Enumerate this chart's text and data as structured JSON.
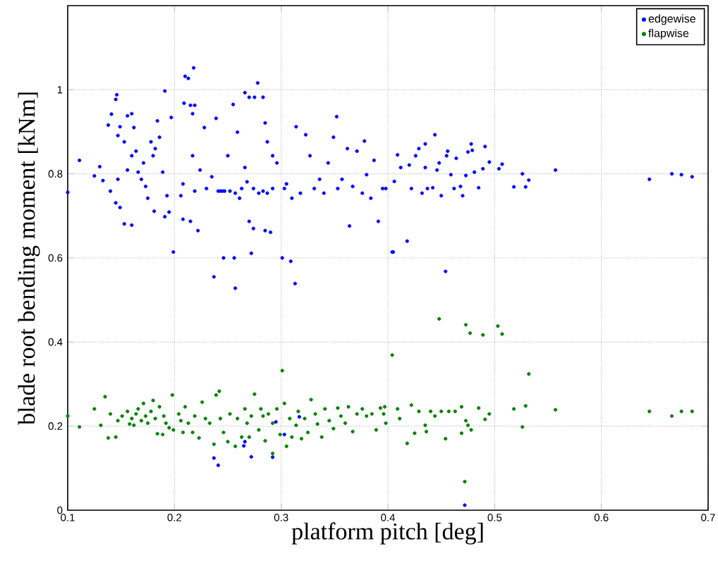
{
  "chart_data": {
    "type": "scatter",
    "xlabel": "platform pitch [deg]",
    "ylabel": "blade root bending moment [kNm]",
    "xlim": [
      0.1,
      0.7
    ],
    "ylim": [
      0,
      1.2
    ],
    "xticks": [
      0.1,
      0.2,
      0.3,
      0.4,
      0.5,
      0.6,
      0.7
    ],
    "yticks": [
      0,
      0.2,
      0.4,
      0.6,
      0.8,
      1
    ],
    "grid": true,
    "legend": "top right",
    "marker": "circle",
    "series": [
      {
        "name": "edgewise",
        "color": "#0000ff",
        "x": [
          0.1,
          0.111,
          0.125,
          0.13,
          0.133,
          0.138,
          0.141,
          0.145,
          0.146,
          0.147,
          0.149,
          0.153,
          0.156,
          0.16,
          0.162,
          0.145,
          0.149,
          0.153,
          0.16,
          0.14,
          0.147,
          0.156,
          0.16,
          0.164,
          0.166,
          0.169,
          0.171,
          0.173,
          0.175,
          0.178,
          0.18,
          0.182,
          0.184,
          0.186,
          0.189,
          0.191,
          0.181,
          0.191,
          0.195,
          0.193,
          0.197,
          0.199,
          0.206,
          0.208,
          0.209,
          0.21,
          0.213,
          0.215,
          0.218,
          0.219,
          0.217,
          0.208,
          0.215,
          0.222,
          0.217,
          0.219,
          0.224,
          0.228,
          0.23,
          0.235,
          0.239,
          0.241,
          0.243,
          0.245,
          0.247,
          0.252,
          0.25,
          0.255,
          0.259,
          0.257,
          0.261,
          0.263,
          0.266,
          0.268,
          0.266,
          0.27,
          0.275,
          0.278,
          0.283,
          0.285,
          0.27,
          0.274,
          0.285,
          0.29,
          0.274,
          0.279,
          0.283,
          0.287,
          0.292,
          0.287,
          0.292,
          0.296,
          0.237,
          0.246,
          0.256,
          0.272,
          0.257,
          0.301,
          0.309,
          0.313,
          0.303,
          0.305,
          0.31,
          0.314,
          0.318,
          0.323,
          0.327,
          0.331,
          0.336,
          0.34,
          0.344,
          0.349,
          0.352,
          0.353,
          0.357,
          0.362,
          0.364,
          0.367,
          0.371,
          0.376,
          0.378,
          0.38,
          0.384,
          0.387,
          0.391,
          0.395,
          0.405,
          0.398,
          0.404,
          0.406,
          0.409,
          0.412,
          0.418,
          0.42,
          0.422,
          0.426,
          0.429,
          0.432,
          0.435,
          0.435,
          0.437,
          0.442,
          0.444,
          0.446,
          0.448,
          0.45,
          0.454,
          0.455,
          0.456,
          0.459,
          0.462,
          0.464,
          0.468,
          0.47,
          0.473,
          0.475,
          0.478,
          0.479,
          0.481,
          0.485,
          0.489,
          0.491,
          0.495,
          0.504,
          0.507,
          0.518,
          0.526,
          0.529,
          0.532,
          0.557,
          0.645,
          0.666,
          0.675,
          0.685,
          0.472,
          0.237,
          0.241,
          0.265,
          0.266,
          0.272,
          0.292,
          0.295,
          0.303,
          0.317
        ],
        "values": [
          0.756,
          0.832,
          0.795,
          0.817,
          0.784,
          0.916,
          0.942,
          0.977,
          0.988,
          0.891,
          0.912,
          0.876,
          0.938,
          0.943,
          0.91,
          0.731,
          0.72,
          0.681,
          0.678,
          0.759,
          0.787,
          0.809,
          0.843,
          0.854,
          0.804,
          0.787,
          0.826,
          0.77,
          0.742,
          0.876,
          0.843,
          0.86,
          0.926,
          0.887,
          0.804,
          0.997,
          0.711,
          0.698,
          0.709,
          0.748,
          0.934,
          0.614,
          0.748,
          0.776,
          0.968,
          1.032,
          1.027,
          0.963,
          1.052,
          0.963,
          0.943,
          0.692,
          0.687,
          0.665,
          0.843,
          0.759,
          0.809,
          0.91,
          0.765,
          0.793,
          0.932,
          0.759,
          0.759,
          0.759,
          0.759,
          0.759,
          0.843,
          0.965,
          0.899,
          0.754,
          0.742,
          0.765,
          0.815,
          0.781,
          0.993,
          0.982,
          0.982,
          1.016,
          0.982,
          0.921,
          0.687,
          0.67,
          0.665,
          0.661,
          0.765,
          0.754,
          0.759,
          0.754,
          0.765,
          0.876,
          0.843,
          0.826,
          0.555,
          0.6,
          0.6,
          0.611,
          0.528,
          0.6,
          0.592,
          0.539,
          0.765,
          0.776,
          0.742,
          0.912,
          0.754,
          0.893,
          0.843,
          0.765,
          0.787,
          0.754,
          0.826,
          0.887,
          0.936,
          0.765,
          0.787,
          0.86,
          0.676,
          0.77,
          0.854,
          0.754,
          0.878,
          0.798,
          0.742,
          0.832,
          0.687,
          0.765,
          0.614,
          0.765,
          0.614,
          0.782,
          0.845,
          0.815,
          0.64,
          0.821,
          0.765,
          0.843,
          0.86,
          0.754,
          0.871,
          0.815,
          0.765,
          0.767,
          0.893,
          0.809,
          0.826,
          0.748,
          0.568,
          0.843,
          0.854,
          0.798,
          0.765,
          0.837,
          0.77,
          0.748,
          0.796,
          0.852,
          0.871,
          0.856,
          0.804,
          0.767,
          0.812,
          0.865,
          0.828,
          0.812,
          0.823,
          0.769,
          0.8,
          0.769,
          0.785,
          0.809,
          0.787,
          0.8,
          0.798,
          0.793,
          0.012,
          0.124,
          0.107,
          0.153,
          0.163,
          0.127,
          0.126,
          0.21,
          0.18,
          0.222
        ]
      },
      {
        "name": "flapwise",
        "color": "#008000",
        "x": [
          0.1,
          0.111,
          0.125,
          0.131,
          0.135,
          0.138,
          0.14,
          0.145,
          0.147,
          0.151,
          0.156,
          0.158,
          0.16,
          0.162,
          0.164,
          0.166,
          0.169,
          0.171,
          0.173,
          0.175,
          0.178,
          0.18,
          0.182,
          0.184,
          0.186,
          0.189,
          0.19,
          0.192,
          0.195,
          0.198,
          0.199,
          0.204,
          0.206,
          0.208,
          0.21,
          0.213,
          0.217,
          0.219,
          0.223,
          0.226,
          0.229,
          0.233,
          0.237,
          0.239,
          0.242,
          0.243,
          0.246,
          0.25,
          0.252,
          0.257,
          0.259,
          0.263,
          0.266,
          0.268,
          0.27,
          0.272,
          0.275,
          0.279,
          0.281,
          0.283,
          0.285,
          0.288,
          0.292,
          0.292,
          0.296,
          0.299,
          0.301,
          0.303,
          0.305,
          0.308,
          0.31,
          0.314,
          0.316,
          0.319,
          0.322,
          0.325,
          0.328,
          0.332,
          0.334,
          0.338,
          0.341,
          0.345,
          0.349,
          0.353,
          0.356,
          0.36,
          0.363,
          0.367,
          0.371,
          0.376,
          0.38,
          0.385,
          0.389,
          0.393,
          0.396,
          0.397,
          0.398,
          0.404,
          0.409,
          0.411,
          0.418,
          0.422,
          0.425,
          0.429,
          0.435,
          0.436,
          0.44,
          0.444,
          0.448,
          0.45,
          0.454,
          0.457,
          0.463,
          0.469,
          0.469,
          0.472,
          0.473,
          0.473,
          0.475,
          0.477,
          0.478,
          0.485,
          0.489,
          0.491,
          0.495,
          0.503,
          0.507,
          0.518,
          0.526,
          0.529,
          0.532,
          0.557,
          0.645,
          0.666,
          0.675,
          0.685
        ],
        "values": [
          0.224,
          0.198,
          0.241,
          0.202,
          0.27,
          0.172,
          0.229,
          0.174,
          0.213,
          0.224,
          0.235,
          0.205,
          0.218,
          0.202,
          0.229,
          0.241,
          0.213,
          0.254,
          0.224,
          0.207,
          0.235,
          0.261,
          0.218,
          0.182,
          0.246,
          0.18,
          0.224,
          0.207,
          0.196,
          0.274,
          0.191,
          0.229,
          0.213,
          0.185,
          0.246,
          0.207,
          0.185,
          0.224,
          0.172,
          0.257,
          0.218,
          0.207,
          0.157,
          0.274,
          0.283,
          0.218,
          0.185,
          0.163,
          0.229,
          0.152,
          0.218,
          0.174,
          0.241,
          0.207,
          0.174,
          0.224,
          0.276,
          0.191,
          0.241,
          0.224,
          0.165,
          0.229,
          0.135,
          0.207,
          0.241,
          0.18,
          0.332,
          0.254,
          0.152,
          0.218,
          0.174,
          0.202,
          0.235,
          0.17,
          0.218,
          0.185,
          0.263,
          0.229,
          0.205,
          0.174,
          0.241,
          0.213,
          0.194,
          0.243,
          0.224,
          0.207,
          0.246,
          0.187,
          0.229,
          0.241,
          0.224,
          0.229,
          0.191,
          0.243,
          0.229,
          0.246,
          0.207,
          0.369,
          0.241,
          0.218,
          0.159,
          0.25,
          0.183,
          0.235,
          0.202,
          0.187,
          0.235,
          0.224,
          0.455,
          0.235,
          0.17,
          0.235,
          0.235,
          0.246,
          0.183,
          0.068,
          0.441,
          0.213,
          0.202,
          0.421,
          0.191,
          0.243,
          0.417,
          0.216,
          0.229,
          0.438,
          0.419,
          0.241,
          0.198,
          0.248,
          0.324,
          0.239,
          0.235,
          0.224,
          0.235,
          0.235
        ]
      }
    ]
  }
}
